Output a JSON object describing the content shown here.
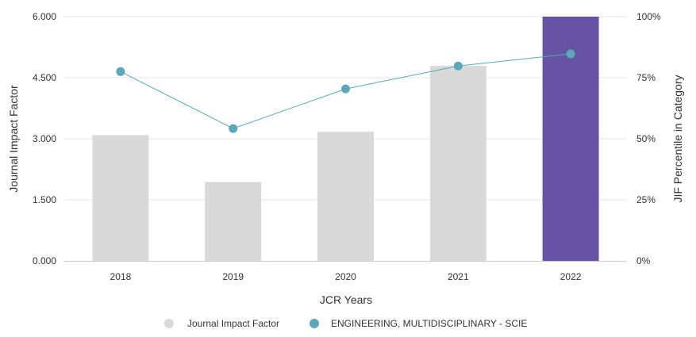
{
  "chart_data": {
    "type": "bar",
    "categories": [
      "2018",
      "2019",
      "2020",
      "2021",
      "2022"
    ],
    "series": [
      {
        "name": "Journal Impact Factor",
        "axis": "left",
        "type": "bar",
        "values": [
          3.09,
          1.94,
          3.17,
          4.79,
          6.0
        ],
        "colors": [
          "#d9d9d9",
          "#d9d9d9",
          "#d9d9d9",
          "#d9d9d9",
          "#6753a3"
        ]
      },
      {
        "name": "ENGINEERING, MULTIDISCIPLINARY - SCIE",
        "axis": "right",
        "type": "line",
        "values": [
          77.5,
          54.2,
          70.4,
          79.8,
          84.8
        ],
        "color": "#5aa8b8"
      }
    ],
    "left_axis": {
      "title": "Journal Impact Factor",
      "range": [
        0,
        6
      ],
      "ticks": [
        0,
        1.5,
        3,
        4.5,
        6
      ],
      "tick_labels": [
        "0.000",
        "1.500",
        "3.000",
        "4.500",
        "6.000"
      ]
    },
    "right_axis": {
      "title": "JIF Percentile in Category",
      "range": [
        0,
        100
      ],
      "ticks": [
        0,
        25,
        50,
        75,
        100
      ],
      "tick_labels": [
        "0%",
        "25%",
        "50%",
        "75%",
        "100%"
      ]
    },
    "xlabel": "JCR Years",
    "grid": true,
    "legend": {
      "position": "bottom-center",
      "items": [
        {
          "label": "Journal Impact Factor",
          "color": "#d9d9d9"
        },
        {
          "label": "ENGINEERING, MULTIDISCIPLINARY - SCIE",
          "color": "#5aa8b8"
        }
      ]
    }
  }
}
